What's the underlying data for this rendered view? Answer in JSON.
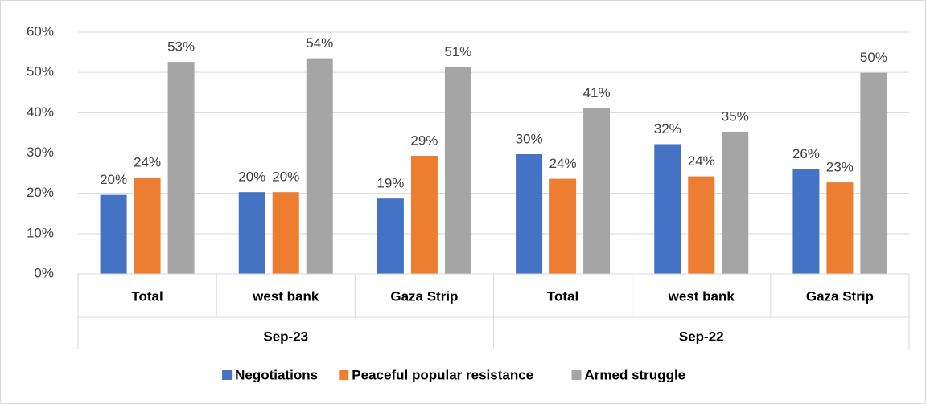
{
  "chart_data": {
    "type": "bar",
    "categories": [
      "Total",
      "west bank",
      "Gaza Strip",
      "Total",
      "west bank",
      "Gaza Strip"
    ],
    "groups": [
      "Sep-23",
      "Sep-22"
    ],
    "series": [
      {
        "name": "Negotiations",
        "color": "#4472c4",
        "values": [
          19.6,
          20.3,
          18.7,
          29.7,
          32.2,
          26.0
        ],
        "value_labels": [
          "20%",
          "20%",
          "19%",
          "30%",
          "32%",
          "26%"
        ]
      },
      {
        "name": "Peaceful popular resistance",
        "color": "#ed7d31",
        "values": [
          23.9,
          20.3,
          29.3,
          23.6,
          24.2,
          22.7
        ],
        "value_labels": [
          "24%",
          "20%",
          "29%",
          "24%",
          "24%",
          "23%"
        ]
      },
      {
        "name": "Armed struggle",
        "color": "#a5a5a5",
        "values": [
          52.6,
          53.5,
          51.3,
          41.2,
          35.3,
          49.9
        ],
        "value_labels": [
          "53%",
          "54%",
          "51%",
          "41%",
          "35%",
          "50%"
        ]
      }
    ],
    "ylim": [
      0,
      60
    ],
    "yticks": [
      {
        "value": 0,
        "label": "0%"
      },
      {
        "value": 10,
        "label": "10%"
      },
      {
        "value": 20,
        "label": "20%"
      },
      {
        "value": 30,
        "label": "30%"
      },
      {
        "value": 40,
        "label": "40%"
      },
      {
        "value": 50,
        "label": "50%"
      },
      {
        "value": 60,
        "label": "60%"
      }
    ],
    "grid": true,
    "legend": "bottom"
  }
}
